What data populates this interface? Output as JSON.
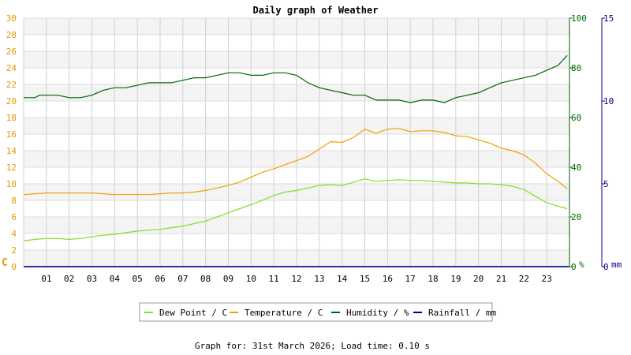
{
  "chart_data": {
    "type": "line",
    "title": "Daily graph of Weather",
    "footer": "Graph for: 31st March 2026; Load time: 0.10 s",
    "x_ticks": [
      "01",
      "02",
      "03",
      "04",
      "05",
      "06",
      "07",
      "08",
      "09",
      "10",
      "11",
      "12",
      "13",
      "14",
      "15",
      "16",
      "17",
      "18",
      "19",
      "20",
      "21",
      "22",
      "23"
    ],
    "xlim": [
      0,
      24
    ],
    "axes": {
      "left": {
        "unit": "C",
        "ticks": [
          0,
          2,
          4,
          6,
          8,
          10,
          12,
          14,
          16,
          18,
          20,
          22,
          24,
          26,
          28,
          30
        ],
        "ylim": [
          0,
          30
        ],
        "color": "#e09a00",
        "unit_color": "#e09a00"
      },
      "right1": {
        "unit": "%",
        "ticks": [
          0,
          20,
          40,
          60,
          80,
          100
        ],
        "ylim": [
          0,
          100
        ],
        "color": "#006400"
      },
      "right2": {
        "unit": "mm",
        "ticks": [
          0,
          5,
          10,
          15
        ],
        "ylim": [
          0,
          15
        ],
        "color": "#00008b"
      }
    },
    "series": [
      {
        "name": "Dew Point / C",
        "axis": "left",
        "color": "#7ee01e",
        "x": [
          0,
          0.5,
          1,
          1.5,
          2,
          2.5,
          3,
          3.5,
          4,
          4.5,
          5,
          5.5,
          6,
          6.5,
          7,
          7.5,
          8,
          8.5,
          9,
          9.5,
          10,
          10.5,
          11,
          11.5,
          12,
          12.5,
          13,
          13.5,
          14,
          14.5,
          15,
          15.5,
          16,
          16.5,
          17,
          17.5,
          18,
          18.5,
          19,
          19.5,
          20,
          20.5,
          21,
          21.5,
          22,
          22.5,
          23,
          23.5,
          23.9
        ],
        "values": [
          3.1,
          3.3,
          3.4,
          3.4,
          3.3,
          3.4,
          3.6,
          3.8,
          3.9,
          4.1,
          4.3,
          4.4,
          4.5,
          4.7,
          4.9,
          5.2,
          5.5,
          6.0,
          6.5,
          7.0,
          7.5,
          8.0,
          8.6,
          9.0,
          9.2,
          9.5,
          9.8,
          9.9,
          9.8,
          10.2,
          10.6,
          10.3,
          10.4,
          10.5,
          10.4,
          10.4,
          10.3,
          10.2,
          10.1,
          10.1,
          10.0,
          10.0,
          9.9,
          9.7,
          9.3,
          8.5,
          7.7,
          7.3,
          7.0
        ]
      },
      {
        "name": "Temperature / C",
        "axis": "left",
        "color": "#f0a000",
        "x": [
          0,
          0.5,
          1,
          1.5,
          2,
          2.5,
          3,
          3.5,
          4,
          4.5,
          5,
          5.5,
          6,
          6.5,
          7,
          7.5,
          8,
          8.5,
          9,
          9.5,
          10,
          10.5,
          11,
          11.5,
          12,
          12.5,
          13,
          13.5,
          14,
          14.5,
          15,
          15.5,
          16,
          16.5,
          17,
          17.5,
          18,
          18.5,
          19,
          19.5,
          20,
          20.5,
          21,
          21.5,
          22,
          22.5,
          23,
          23.5,
          23.9
        ],
        "values": [
          8.7,
          8.8,
          8.9,
          8.9,
          8.9,
          8.9,
          8.9,
          8.8,
          8.7,
          8.7,
          8.7,
          8.7,
          8.8,
          8.9,
          8.9,
          9.0,
          9.2,
          9.5,
          9.8,
          10.2,
          10.8,
          11.4,
          11.8,
          12.3,
          12.8,
          13.3,
          14.2,
          15.1,
          15.0,
          15.6,
          16.6,
          16.1,
          16.6,
          16.7,
          16.3,
          16.4,
          16.4,
          16.2,
          15.8,
          15.7,
          15.3,
          14.9,
          14.3,
          14.0,
          13.5,
          12.5,
          11.2,
          10.3,
          9.4
        ]
      },
      {
        "name": "Humidity / %",
        "axis": "right1",
        "color": "#006400",
        "x": [
          0,
          0.5,
          0.7,
          1,
          1.5,
          2,
          2.5,
          3,
          3.5,
          4,
          4.5,
          5,
          5.5,
          6,
          6.5,
          7,
          7.5,
          8,
          8.5,
          9,
          9.5,
          10,
          10.5,
          11,
          11.5,
          12,
          12.5,
          13,
          13.5,
          14,
          14.5,
          15,
          15.5,
          16,
          16.5,
          17,
          17.5,
          18,
          18.5,
          19,
          19.5,
          20,
          20.5,
          21,
          21.5,
          22,
          22.5,
          23,
          23.5,
          23.9
        ],
        "values": [
          68,
          68,
          69,
          69,
          69,
          68,
          68,
          69,
          71,
          72,
          72,
          73,
          74,
          74,
          74,
          75,
          76,
          76,
          77,
          78,
          78,
          77,
          77,
          78,
          78,
          77,
          74,
          72,
          71,
          70,
          69,
          69,
          67,
          67,
          67,
          66,
          67,
          67,
          66,
          68,
          69,
          70,
          72,
          74,
          75,
          76,
          77,
          79,
          81,
          85
        ]
      },
      {
        "name": "Rainfall / mm",
        "axis": "right2",
        "color": "#00008b",
        "x": [
          0,
          23.9
        ],
        "values": [
          0,
          0
        ]
      }
    ],
    "grid": true,
    "legend_position": "bottom"
  }
}
